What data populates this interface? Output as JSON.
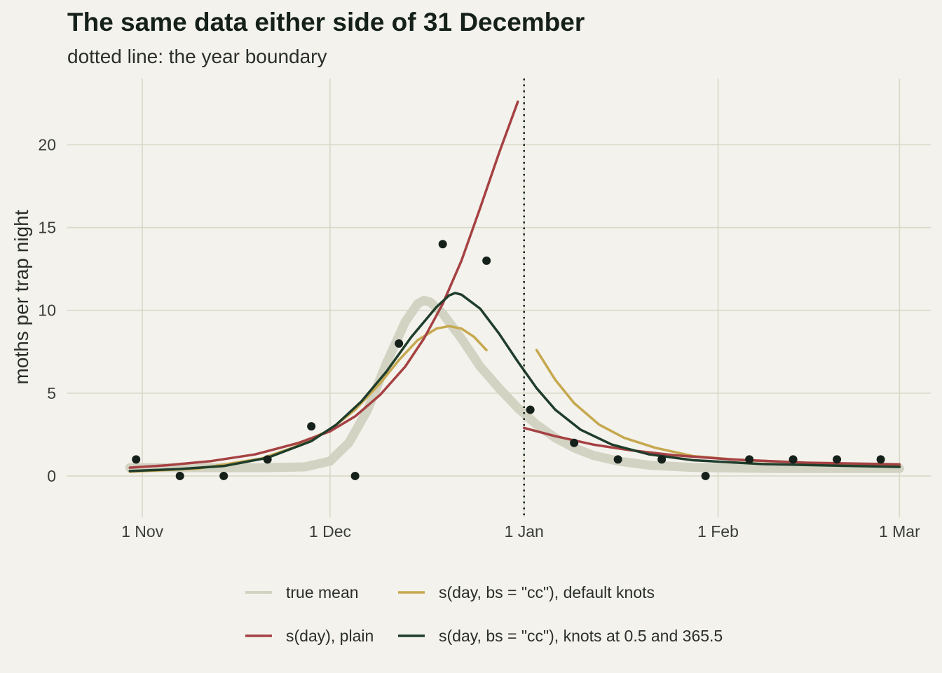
{
  "chart_data": {
    "type": "line",
    "title": "The same data either side of 31 December",
    "subtitle": "dotted line: the year boundary",
    "xlabel": "",
    "ylabel": "moths per trap night",
    "xlim": [
      "2023-10-20",
      "2024-03-06"
    ],
    "ylim": [
      -2.5,
      24
    ],
    "x_ticks": [
      {
        "date": "2023-11-01",
        "label": "1 Nov"
      },
      {
        "date": "2023-12-01",
        "label": "1 Dec"
      },
      {
        "date": "2024-01-01",
        "label": "1 Jan"
      },
      {
        "date": "2024-02-01",
        "label": "1 Feb"
      },
      {
        "date": "2024-03-01",
        "label": "1 Mar"
      }
    ],
    "y_ticks": [
      0,
      5,
      10,
      15,
      20
    ],
    "vline": {
      "date": "2024-01-01",
      "style": "dotted",
      "color": "#15201a"
    },
    "grid": true,
    "legend_position": "bottom",
    "points": {
      "color": "#15201a",
      "x": [
        "2023-10-31",
        "2023-11-07",
        "2023-11-14",
        "2023-11-21",
        "2023-11-28",
        "2023-12-05",
        "2023-12-12",
        "2023-12-19",
        "2023-12-26",
        "2024-01-02",
        "2024-01-09",
        "2024-01-16",
        "2024-01-23",
        "2024-01-30",
        "2024-02-06",
        "2024-02-13",
        "2024-02-20",
        "2024-02-27"
      ],
      "y": [
        1,
        0,
        0,
        1,
        3,
        0,
        8,
        14,
        13,
        4,
        2,
        1,
        1,
        0,
        1,
        1,
        1,
        1
      ]
    },
    "series": [
      {
        "name": "true mean",
        "color": "#d3d3c3",
        "segments": [
          [
            [
              "2023-10-30",
              0.5
            ],
            [
              "2023-11-10",
              0.5
            ],
            [
              "2023-11-20",
              0.5
            ],
            [
              "2023-11-27",
              0.55
            ],
            [
              "2023-12-01",
              0.9
            ],
            [
              "2023-12-04",
              2.0
            ],
            [
              "2023-12-07",
              4.0
            ],
            [
              "2023-12-10",
              6.8
            ],
            [
              "2023-12-13",
              9.3
            ],
            [
              "2023-12-15",
              10.4
            ],
            [
              "2023-12-16",
              10.6
            ],
            [
              "2023-12-17",
              10.5
            ],
            [
              "2023-12-19",
              9.8
            ],
            [
              "2023-12-22",
              8.3
            ],
            [
              "2023-12-25",
              6.6
            ],
            [
              "2023-12-28",
              5.3
            ],
            [
              "2023-12-31",
              4.1
            ],
            [
              "2024-01-03",
              3.1
            ],
            [
              "2024-01-06",
              2.3
            ],
            [
              "2024-01-09",
              1.7
            ],
            [
              "2024-01-12",
              1.25
            ],
            [
              "2024-01-16",
              0.9
            ],
            [
              "2024-01-21",
              0.65
            ],
            [
              "2024-01-28",
              0.52
            ],
            [
              "2024-02-10",
              0.45
            ],
            [
              "2024-03-01",
              0.45
            ]
          ]
        ]
      },
      {
        "name": "s(day, bs = \"cc\"), default knots",
        "color": "#c6a84f",
        "segments": [
          [
            [
              "2023-10-30",
              0.25
            ],
            [
              "2023-11-10",
              0.45
            ],
            [
              "2023-11-20",
              1.05
            ],
            [
              "2023-11-25",
              1.7
            ],
            [
              "2023-12-01",
              2.8
            ],
            [
              "2023-12-05",
              4.0
            ],
            [
              "2023-12-09",
              5.6
            ],
            [
              "2023-12-12",
              7.0
            ],
            [
              "2023-12-15",
              8.2
            ],
            [
              "2023-12-18",
              8.9
            ],
            [
              "2023-12-20",
              9.05
            ],
            [
              "2023-12-22",
              8.9
            ],
            [
              "2023-12-24",
              8.4
            ],
            [
              "2023-12-26",
              7.6
            ]
          ],
          [
            [
              "2024-01-03",
              7.6
            ],
            [
              "2024-01-06",
              5.8
            ],
            [
              "2024-01-09",
              4.4
            ],
            [
              "2024-01-13",
              3.1
            ],
            [
              "2024-01-17",
              2.3
            ],
            [
              "2024-01-22",
              1.7
            ],
            [
              "2024-01-28",
              1.2
            ],
            [
              "2024-02-05",
              0.95
            ],
            [
              "2024-02-15",
              0.8
            ],
            [
              "2024-03-01",
              0.65
            ]
          ]
        ]
      },
      {
        "name": "s(day), plain",
        "color": "#a64143",
        "segments": [
          [
            [
              "2023-10-30",
              0.5
            ],
            [
              "2023-11-05",
              0.65
            ],
            [
              "2023-11-12",
              0.9
            ],
            [
              "2023-11-19",
              1.3
            ],
            [
              "2023-11-26",
              2.0
            ],
            [
              "2023-12-01",
              2.7
            ],
            [
              "2023-12-05",
              3.6
            ],
            [
              "2023-12-09",
              4.9
            ],
            [
              "2023-12-13",
              6.6
            ],
            [
              "2023-12-16",
              8.3
            ],
            [
              "2023-12-19",
              10.4
            ],
            [
              "2023-12-22",
              13.0
            ],
            [
              "2023-12-25",
              16.2
            ],
            [
              "2023-12-28",
              19.5
            ],
            [
              "2023-12-31",
              22.6
            ]
          ],
          [
            [
              "2024-01-01",
              2.9
            ],
            [
              "2024-01-06",
              2.4
            ],
            [
              "2024-01-12",
              1.9
            ],
            [
              "2024-01-18",
              1.55
            ],
            [
              "2024-01-25",
              1.25
            ],
            [
              "2024-02-03",
              1.0
            ],
            [
              "2024-02-15",
              0.8
            ],
            [
              "2024-03-01",
              0.7
            ]
          ]
        ]
      },
      {
        "name": "s(day, bs = \"cc\"), knots at 0.5 and 365.5",
        "color": "#1f3d2b",
        "segments": [
          [
            [
              "2023-10-30",
              0.3
            ],
            [
              "2023-11-07",
              0.42
            ],
            [
              "2023-11-14",
              0.6
            ],
            [
              "2023-11-21",
              1.1
            ],
            [
              "2023-11-28",
              2.1
            ],
            [
              "2023-12-02",
              3.1
            ],
            [
              "2023-12-06",
              4.5
            ],
            [
              "2023-12-10",
              6.3
            ],
            [
              "2023-12-14",
              8.4
            ],
            [
              "2023-12-18",
              10.2
            ],
            [
              "2023-12-20",
              10.9
            ],
            [
              "2023-12-21",
              11.05
            ],
            [
              "2023-12-22",
              10.95
            ],
            [
              "2023-12-25",
              10.1
            ],
            [
              "2023-12-28",
              8.6
            ],
            [
              "2023-12-31",
              6.9
            ],
            [
              "2024-01-03",
              5.3
            ],
            [
              "2024-01-06",
              4.0
            ],
            [
              "2024-01-10",
              2.8
            ],
            [
              "2024-01-15",
              1.9
            ],
            [
              "2024-01-21",
              1.3
            ],
            [
              "2024-01-28",
              0.95
            ],
            [
              "2024-02-08",
              0.72
            ],
            [
              "2024-02-20",
              0.62
            ],
            [
              "2024-03-01",
              0.55
            ]
          ]
        ]
      }
    ],
    "legend": [
      {
        "label": "true mean",
        "series": 0
      },
      {
        "label": "s(day, bs = \"cc\"), default knots",
        "series": 1
      },
      {
        "label": "s(day), plain",
        "series": 2
      },
      {
        "label": "s(day, bs = \"cc\"), knots at 0.5 and 365.5",
        "series": 3
      }
    ]
  }
}
